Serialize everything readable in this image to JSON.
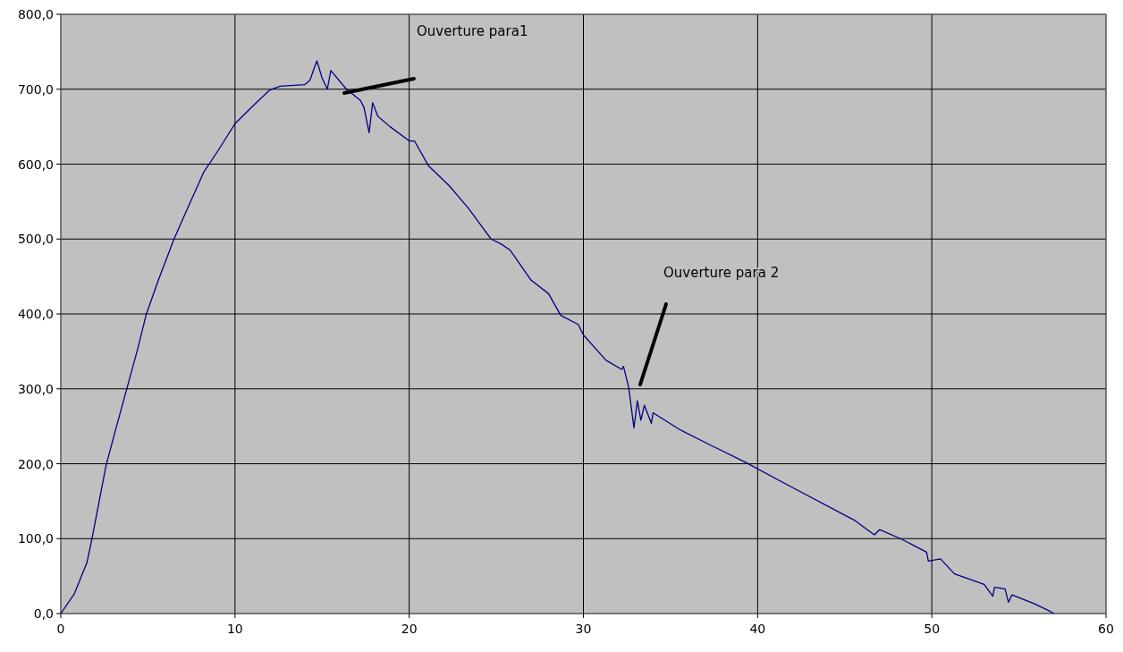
{
  "chart_data": {
    "type": "line",
    "x": [
      0,
      0.77,
      1.5,
      1.8,
      2.6,
      3.2,
      3.8,
      4.4,
      4.9,
      5.6,
      6.5,
      7.2,
      8.2,
      9.0,
      10.0,
      11.0,
      12.0,
      12.6,
      14.0,
      14.3,
      14.7,
      15.0,
      15.3,
      15.5,
      16.4,
      17.2,
      17.4,
      17.7,
      17.9,
      18.2,
      18.9,
      20.0,
      20.3,
      21.1,
      22.3,
      23.4,
      24.7,
      25.3,
      25.8,
      27.0,
      28.0,
      28.7,
      29.7,
      30.0,
      31.3,
      32.2,
      32.3,
      32.6,
      32.9,
      33.1,
      33.3,
      33.5,
      33.9,
      34.0,
      35.5,
      37.2,
      39.3,
      41.7,
      45.6,
      46.7,
      47.0,
      48.2,
      49.7,
      49.8,
      50.5,
      51.3,
      53.0,
      53.5,
      53.6,
      54.2,
      54.4,
      54.6,
      55.9,
      56.7,
      57.0
    ],
    "series": [
      {
        "color": "#000080",
        "values": [
          0,
          26,
          68,
          101,
          198,
          250,
          301,
          352,
          399,
          445,
          500,
          537,
          589,
          617,
          654,
          677,
          699,
          704,
          706,
          712,
          738,
          715,
          700,
          725,
          700,
          685,
          676,
          642,
          682,
          664,
          650,
          631,
          631,
          598,
          571,
          541,
          500,
          493,
          485,
          445,
          427,
          398,
          386,
          372,
          338,
          326,
          330,
          302,
          248,
          284,
          258,
          278,
          254,
          268,
          246,
          226,
          202,
          172,
          124,
          105,
          112,
          100,
          82,
          70,
          73,
          53,
          39,
          23,
          35,
          33,
          15,
          25,
          13,
          4,
          0
        ]
      }
    ],
    "xlim": [
      0,
      60
    ],
    "xticks": [
      0,
      10,
      20,
      30,
      40,
      50,
      60
    ],
    "ylim": [
      0,
      800
    ],
    "yticks": [
      {
        "value": 0,
        "label": "0,0"
      },
      {
        "value": 100,
        "label": "100,0"
      },
      {
        "value": 200,
        "label": "200,0"
      },
      {
        "value": 300,
        "label": "300,0"
      },
      {
        "value": 400,
        "label": "400,0"
      },
      {
        "value": 500,
        "label": "500,0"
      },
      {
        "value": 600,
        "label": "600,0"
      },
      {
        "value": 700,
        "label": "700,0"
      },
      {
        "value": 800,
        "label": "800,0"
      }
    ],
    "grid": true,
    "marker": "none",
    "line_style": "solid",
    "annotations": [
      "Ouverture para1",
      "Ouverture para 2"
    ]
  }
}
